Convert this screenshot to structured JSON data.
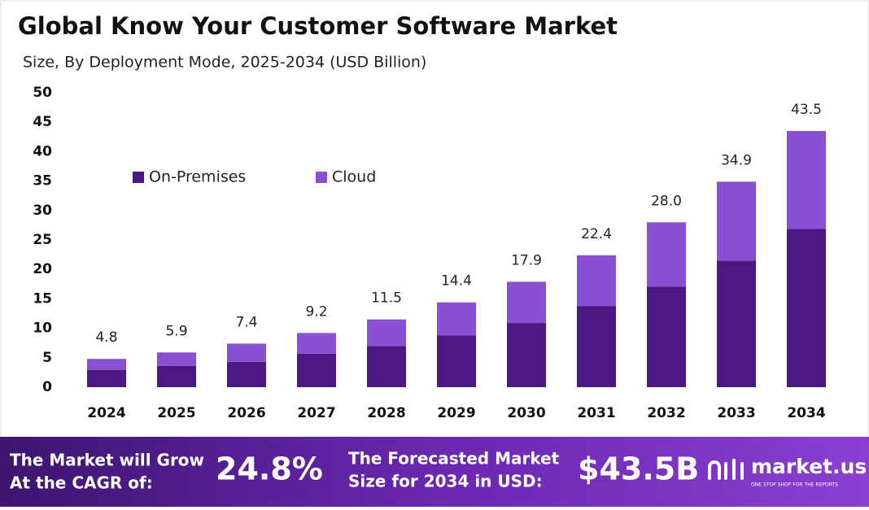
{
  "chart_data": {
    "type": "stacked_bar",
    "title": "Global Know Your Customer Software Market",
    "subtitle": "Size, By Deployment Mode, 2025-2034 (USD Billion)",
    "categories": [
      "2024",
      "2025",
      "2026",
      "2027",
      "2028",
      "2029",
      "2030",
      "2031",
      "2032",
      "2033",
      "2034"
    ],
    "series": [
      {
        "name": "On-Premises",
        "color": "#4b1784",
        "values": [
          2.9,
          3.6,
          4.3,
          5.7,
          7.0,
          8.8,
          10.9,
          13.8,
          17.1,
          21.5,
          26.9
        ]
      },
      {
        "name": "Cloud",
        "color": "#8b4fd3",
        "values": [
          1.9,
          2.3,
          3.1,
          3.5,
          4.5,
          5.6,
          7.0,
          8.6,
          10.9,
          13.4,
          16.6
        ]
      }
    ],
    "totals": {
      "values": [
        4.8,
        5.9,
        7.4,
        9.2,
        11.5,
        14.4,
        17.9,
        22.4,
        28,
        34.9,
        43.5
      ],
      "value_labels": [
        "4.8",
        "5.9",
        "7.4",
        "9.2",
        "11.5",
        "14.4",
        "17.9",
        "22.4",
        "28.0",
        "34.9",
        "43.5"
      ]
    },
    "ylim": [
      0,
      50
    ],
    "yticks": [
      0,
      5,
      10,
      15,
      20,
      25,
      30,
      35,
      40,
      45,
      50
    ],
    "grid": false,
    "legend": "upper-left"
  },
  "footer": {
    "cagr_text": [
      "The Market will Grow",
      "At the CAGR of:"
    ],
    "cagr": "24.8%",
    "forecast_text": [
      "The Forecasted Market",
      "Size for 2034 in USD:"
    ],
    "forecast": "$43.5B",
    "brand": "market.us",
    "tagline": "ONE STOP SHOP FOR THE REPORTS"
  }
}
